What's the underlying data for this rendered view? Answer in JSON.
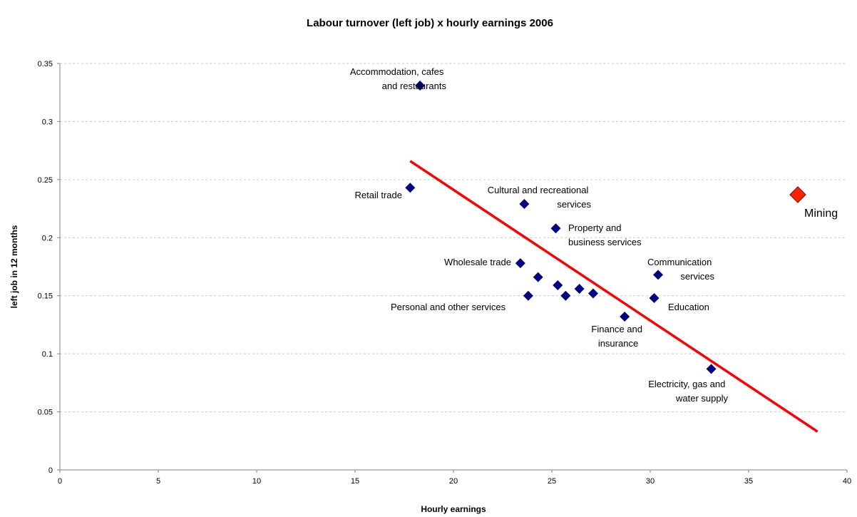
{
  "chart_data": {
    "type": "scatter",
    "title": "Labour turnover (left job) x hourly earnings 2006",
    "xlabel": "Hourly earnings",
    "ylabel": "left job in 12 months",
    "xlim": [
      0,
      40
    ],
    "ylim": [
      0,
      0.35
    ],
    "xticks": [
      "0",
      "5",
      "10",
      "15",
      "20",
      "25",
      "30",
      "35",
      "40"
    ],
    "yticks": [
      "0",
      "0.05",
      "0.1",
      "0.15",
      "0.2",
      "0.25",
      "0.3",
      "0.35"
    ],
    "grid": "horizontal dashed",
    "colors": {
      "points": "#000080",
      "highlight": "#ff2200",
      "trendline": "#ff0000"
    },
    "points": [
      {
        "label": "Accommodation, cafes and restaurants",
        "x": 18.3,
        "y": 0.331
      },
      {
        "label": "Retail trade",
        "x": 17.8,
        "y": 0.243
      },
      {
        "label": "Cultural and recreational services",
        "x": 23.6,
        "y": 0.229
      },
      {
        "label": "Property and business services",
        "x": 25.2,
        "y": 0.208
      },
      {
        "label": "Wholesale trade",
        "x": 23.4,
        "y": 0.178
      },
      {
        "label": "",
        "x": 24.3,
        "y": 0.166
      },
      {
        "label": "",
        "x": 25.3,
        "y": 0.159
      },
      {
        "label": "",
        "x": 26.4,
        "y": 0.156
      },
      {
        "label": "",
        "x": 27.1,
        "y": 0.152
      },
      {
        "label": "",
        "x": 25.7,
        "y": 0.15
      },
      {
        "label": "Personal and other services",
        "x": 23.8,
        "y": 0.15
      },
      {
        "label": "Communication services",
        "x": 30.4,
        "y": 0.168
      },
      {
        "label": "Education",
        "x": 30.2,
        "y": 0.148
      },
      {
        "label": "Finance and insurance",
        "x": 28.7,
        "y": 0.132
      },
      {
        "label": "Electricity, gas and water supply",
        "x": 33.1,
        "y": 0.087
      }
    ],
    "highlight_point": {
      "label": "Mining",
      "x": 37.5,
      "y": 0.237
    },
    "trendline": {
      "x": [
        17.8,
        38.5
      ],
      "y": [
        0.266,
        0.033
      ]
    }
  }
}
